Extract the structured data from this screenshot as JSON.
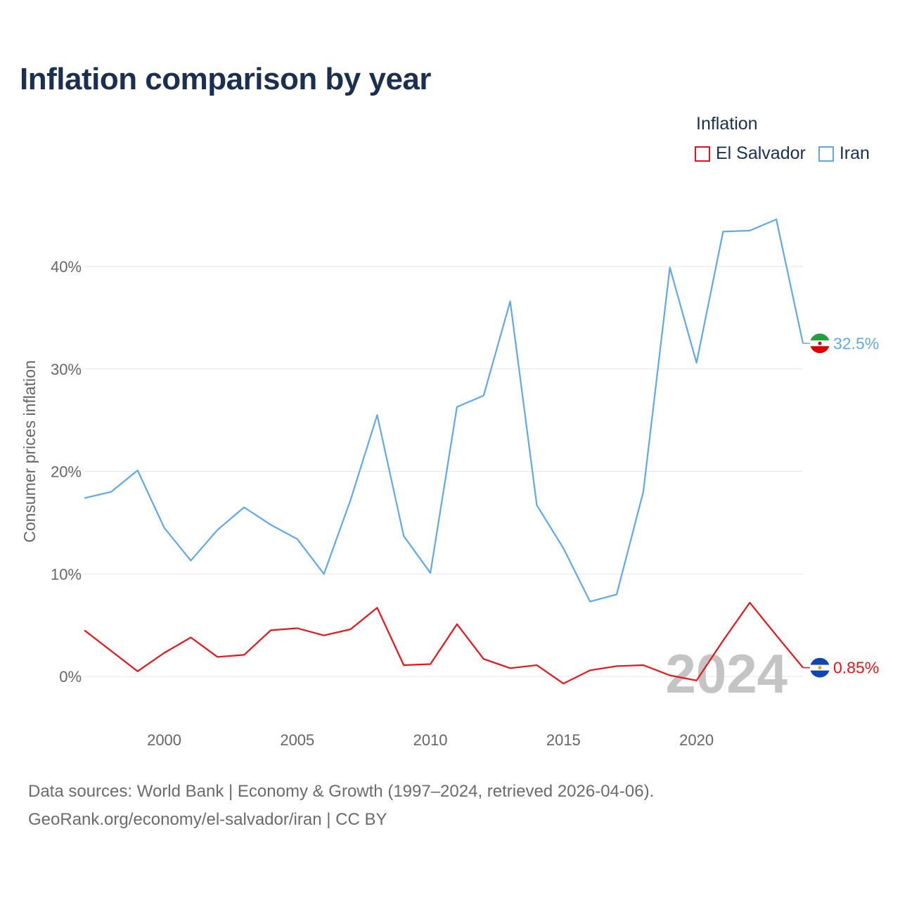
{
  "title": "Inflation comparison by year",
  "legend": {
    "title": "Inflation",
    "items": [
      {
        "name": "El Salvador",
        "color": "#e8141c"
      },
      {
        "name": "Iran",
        "color": "#62a8e5"
      }
    ]
  },
  "chart_data": {
    "type": "line",
    "title": "Inflation comparison by year",
    "ylabel": "Consumer prices inflation",
    "xlabel": "",
    "xlim": [
      1997,
      2024
    ],
    "ylim": [
      -5,
      47
    ],
    "x_ticks": [
      2000,
      2005,
      2010,
      2015,
      2020
    ],
    "x_tick_labels": [
      "2000",
      "2005",
      "2010",
      "2015",
      "2020"
    ],
    "y_ticks": [
      0,
      10,
      20,
      30,
      40
    ],
    "y_tick_labels": [
      "0%",
      "10%",
      "20%",
      "30%",
      "40%"
    ],
    "grid": true,
    "year_label": "2024",
    "x": [
      1997,
      1998,
      1999,
      2000,
      2001,
      2002,
      2003,
      2004,
      2005,
      2006,
      2007,
      2008,
      2009,
      2010,
      2011,
      2012,
      2013,
      2014,
      2015,
      2016,
      2017,
      2018,
      2019,
      2020,
      2021,
      2022,
      2023,
      2024
    ],
    "series": [
      {
        "name": "Iran",
        "color": "#62a8e5",
        "end_label": "32.5%",
        "flag": "iran-flag-icon",
        "values": [
          17.4,
          18.0,
          20.1,
          14.5,
          11.3,
          14.3,
          16.5,
          14.8,
          13.4,
          10.0,
          17.2,
          25.5,
          13.7,
          10.1,
          26.3,
          27.4,
          36.6,
          16.7,
          12.5,
          7.3,
          8.0,
          18.0,
          39.9,
          30.6,
          43.4,
          43.5,
          44.6,
          32.5
        ]
      },
      {
        "name": "El Salvador",
        "color": "#e8141c",
        "end_label": "0.85%",
        "flag": "el-salvador-flag-icon",
        "values": [
          4.5,
          2.5,
          0.5,
          2.3,
          3.8,
          1.9,
          2.1,
          4.5,
          4.7,
          4.0,
          4.6,
          6.7,
          1.1,
          1.2,
          5.1,
          1.7,
          0.8,
          1.1,
          -0.7,
          0.6,
          1.0,
          1.1,
          0.1,
          -0.4,
          3.5,
          7.2,
          4.0,
          0.85
        ]
      }
    ]
  },
  "footer": {
    "line1": "Data sources: World Bank | Economy & Growth (1997–2024, retrieved 2026-04-06).",
    "line2": "GeoRank.org/economy/el-salvador/iran | CC BY"
  }
}
